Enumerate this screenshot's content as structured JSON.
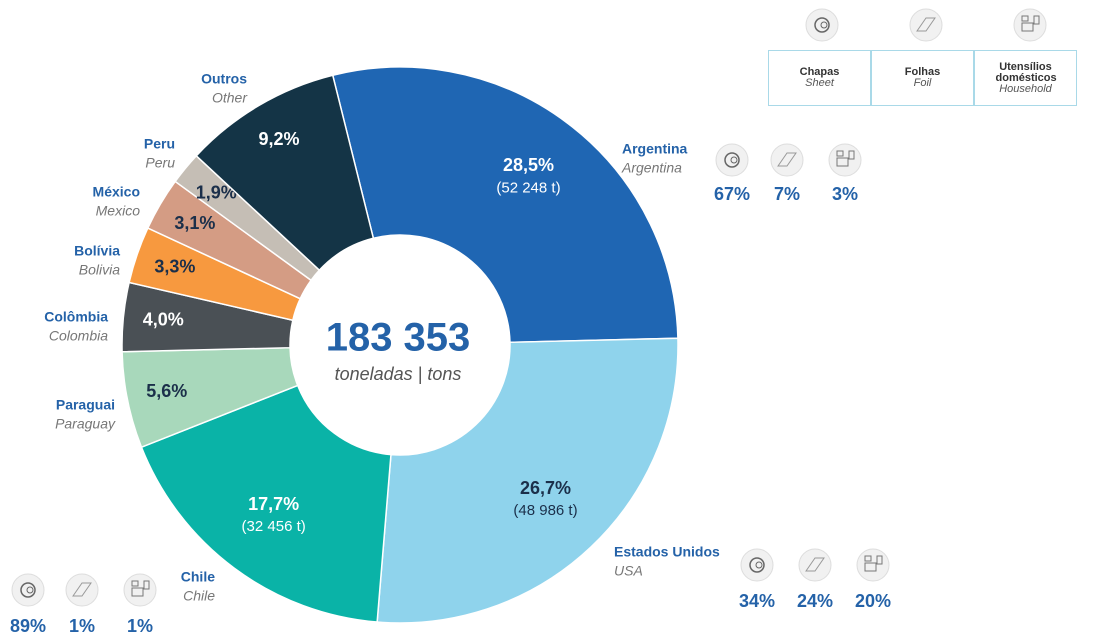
{
  "chart_data": {
    "type": "pie",
    "total": {
      "value": 183353,
      "label": "183 353"
    },
    "total_unit": "toneladas | tons",
    "categories": [
      "Argentina",
      "Estados Unidos",
      "Chile",
      "Paraguai",
      "Colômbia",
      "Bolívia",
      "México",
      "Peru",
      "Outros"
    ],
    "categories_en": [
      "Argentina",
      "USA",
      "Chile",
      "Paraguay",
      "Colombia",
      "Bolivia",
      "Mexico",
      "Peru",
      "Other"
    ],
    "values": [
      28.5,
      26.7,
      17.7,
      5.6,
      4.0,
      3.3,
      3.1,
      1.9,
      9.2
    ],
    "value_labels": [
      "28,5%",
      "26,7%",
      "17,7%",
      "5,6%",
      "4,0%",
      "3,3%",
      "3,1%",
      "1,9%",
      "9,2%"
    ],
    "colors": [
      "#1f66b3",
      "#8fd3ec",
      "#0ab3a7",
      "#a8d8bb",
      "#4a5055",
      "#f7993f",
      "#d49c84",
      "#c5beb5",
      "#143446"
    ],
    "tonnage": {
      "values": [
        52248,
        48986,
        32456
      ],
      "value_labels": [
        "(52 248 t)",
        "(48 986 t)",
        "(32 456 t)"
      ]
    },
    "products": [
      {
        "name": "Chapas",
        "name_en": "Sheet"
      },
      {
        "name": "Folhas",
        "name_en": "Foil"
      },
      {
        "name": "Utensílios domésticos",
        "name_en": "Household"
      }
    ],
    "product_shares": {
      "values": [
        [
          67,
          7,
          3
        ],
        [
          34,
          24,
          20
        ],
        [
          89,
          1,
          1
        ]
      ],
      "value_labels": [
        [
          "67%",
          "7%",
          "3%"
        ],
        [
          "34%",
          "24%",
          "20%"
        ],
        [
          "89%",
          "1%",
          "1%"
        ]
      ]
    }
  }
}
